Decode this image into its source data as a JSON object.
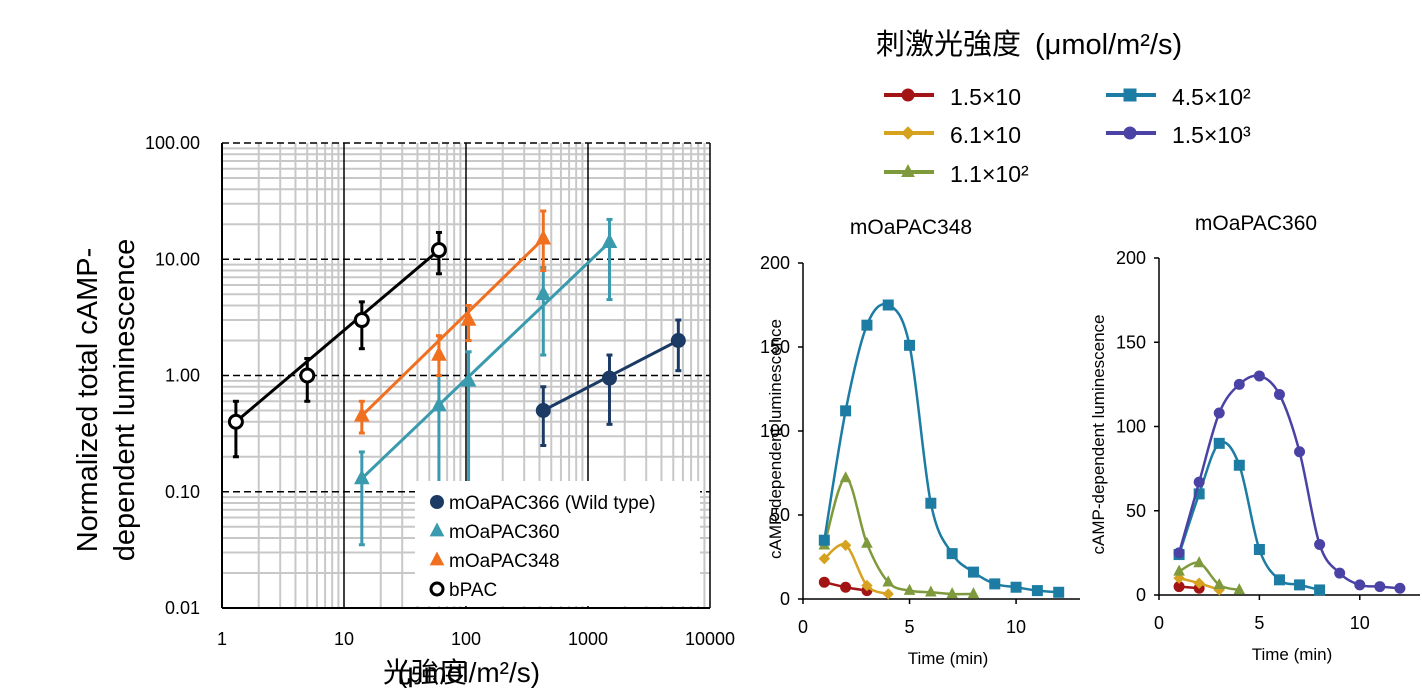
{
  "legend_box": {
    "title": "刺激光強度",
    "title_unit": "(μmol/m²/s)",
    "entries": [
      {
        "label": "1.5×10",
        "color": "#a31515",
        "marker": "circle"
      },
      {
        "label": "6.1×10",
        "color": "#d6a21f",
        "marker": "diamond"
      },
      {
        "label": "1.1×10²",
        "color": "#7f9a3d",
        "marker": "triangle"
      },
      {
        "label": "4.5×10²",
        "color": "#1c7ca3",
        "marker": "square"
      },
      {
        "label": "1.5×10³",
        "color": "#4a42a5",
        "marker": "circle"
      }
    ]
  },
  "chart_data": [
    {
      "id": "main",
      "type": "scatter",
      "xscale": "log",
      "yscale": "log",
      "xlim": [
        1,
        10000
      ],
      "ylim": [
        0.01,
        100
      ],
      "xticks": [
        "1",
        "10",
        "100",
        "1000",
        "10000"
      ],
      "yticks": [
        "0.01",
        "0.10",
        "1.00",
        "10.00",
        "100.00"
      ],
      "xlabel": "光強度",
      "xlabel_unit": "(μmol/m²/s)",
      "ylabel_line1": "Normalized total cAMP-",
      "ylabel_line2": "dependent luminescence",
      "grid": true,
      "legend": "bottom-right",
      "series": [
        {
          "name": "mOaPAC366 (Wild type)",
          "color": "#1b3a64",
          "marker": "filled-circle",
          "x": [
            430,
            1500,
            5500
          ],
          "y": [
            0.5,
            0.95,
            2.0
          ],
          "err_low": [
            0.25,
            0.38,
            1.1
          ],
          "err_high": [
            0.8,
            1.5,
            3.0
          ],
          "fit": [
            [
              430,
              0.5
            ],
            [
              5500,
              2.0
            ]
          ]
        },
        {
          "name": "mOaPAC360",
          "color": "#3a9aae",
          "marker": "filled-triangle",
          "x": [
            14,
            60,
            105,
            430,
            1500
          ],
          "y": [
            0.13,
            0.55,
            0.9,
            5.0,
            14.0
          ],
          "err_low": [
            0.035,
            0.06,
            0.06,
            1.5,
            4.5
          ],
          "err_high": [
            0.22,
            1.0,
            1.6,
            8.5,
            22.0
          ],
          "fit": [
            [
              14,
              0.13
            ],
            [
              1500,
              14.0
            ]
          ]
        },
        {
          "name": "mOaPAC348",
          "color": "#f07020",
          "marker": "filled-triangle",
          "x": [
            14,
            60,
            105,
            430
          ],
          "y": [
            0.45,
            1.5,
            3.0,
            15.0
          ],
          "err_low": [
            0.32,
            1.0,
            2.0,
            8.0
          ],
          "err_high": [
            0.6,
            2.2,
            4.0,
            26.0
          ],
          "fit": [
            [
              14,
              0.45
            ],
            [
              430,
              15.0
            ]
          ]
        },
        {
          "name": "bPAC",
          "color": "#000000",
          "marker": "open-circle",
          "x": [
            1.3,
            5,
            14,
            60
          ],
          "y": [
            0.4,
            1.0,
            3.0,
            12.0
          ],
          "err_low": [
            0.2,
            0.6,
            1.7,
            7.5
          ],
          "err_high": [
            0.6,
            1.4,
            4.3,
            17.0
          ],
          "fit": [
            [
              1.3,
              0.4
            ],
            [
              60,
              12.0
            ]
          ]
        }
      ]
    },
    {
      "id": "mOaPAC348",
      "type": "line",
      "title": "mOaPAC348",
      "xlabel": "Time (min)",
      "ylabel": "cAMP-dependent luminescence",
      "xlim": [
        0,
        13
      ],
      "ylim": [
        0,
        200
      ],
      "xticks": [
        0,
        5,
        10
      ],
      "yticks": [
        0,
        50,
        100,
        150,
        200
      ],
      "series": [
        {
          "name": "1.5×10",
          "x": [
            1,
            2,
            3
          ],
          "y": [
            10,
            7,
            5
          ]
        },
        {
          "name": "6.1×10",
          "x": [
            1,
            2,
            3,
            4
          ],
          "y": [
            24,
            32,
            8,
            3
          ]
        },
        {
          "name": "1.1×10²",
          "x": [
            1,
            2,
            3,
            4,
            5,
            6,
            7,
            8
          ],
          "y": [
            32,
            72,
            33,
            10,
            5,
            4,
            3,
            3
          ]
        },
        {
          "name": "4.5×10²",
          "x": [
            1,
            2,
            3,
            4,
            5,
            6,
            7,
            8,
            9,
            10,
            11,
            12
          ],
          "y": [
            35,
            112,
            163,
            175,
            151,
            57,
            27,
            16,
            9,
            7,
            5,
            4
          ]
        }
      ]
    },
    {
      "id": "mOaPAC360",
      "type": "line",
      "title": "mOaPAC360",
      "xlabel": "Time (min)",
      "ylabel": "cAMP-dependent luminescence",
      "xlim": [
        0,
        13
      ],
      "ylim": [
        0,
        200
      ],
      "xticks": [
        0,
        5,
        10
      ],
      "yticks": [
        0,
        50,
        100,
        150,
        200
      ],
      "series": [
        {
          "name": "1.5×10",
          "x": [
            1,
            2
          ],
          "y": [
            5,
            4
          ]
        },
        {
          "name": "6.1×10",
          "x": [
            1,
            2,
            3
          ],
          "y": [
            10,
            7,
            3
          ]
        },
        {
          "name": "1.1×10²",
          "x": [
            1,
            2,
            3,
            4
          ],
          "y": [
            14,
            19,
            6,
            3
          ]
        },
        {
          "name": "4.5×10²",
          "x": [
            1,
            2,
            3,
            4,
            5,
            6,
            7,
            8
          ],
          "y": [
            24,
            60,
            90,
            77,
            27,
            9,
            6,
            3
          ]
        },
        {
          "name": "1.5×10³",
          "x": [
            1,
            2,
            3,
            4,
            5,
            6,
            7,
            8,
            9,
            10,
            11,
            12
          ],
          "y": [
            25,
            67,
            108,
            125,
            130,
            119,
            85,
            30,
            13,
            6,
            5,
            4
          ]
        }
      ]
    }
  ]
}
